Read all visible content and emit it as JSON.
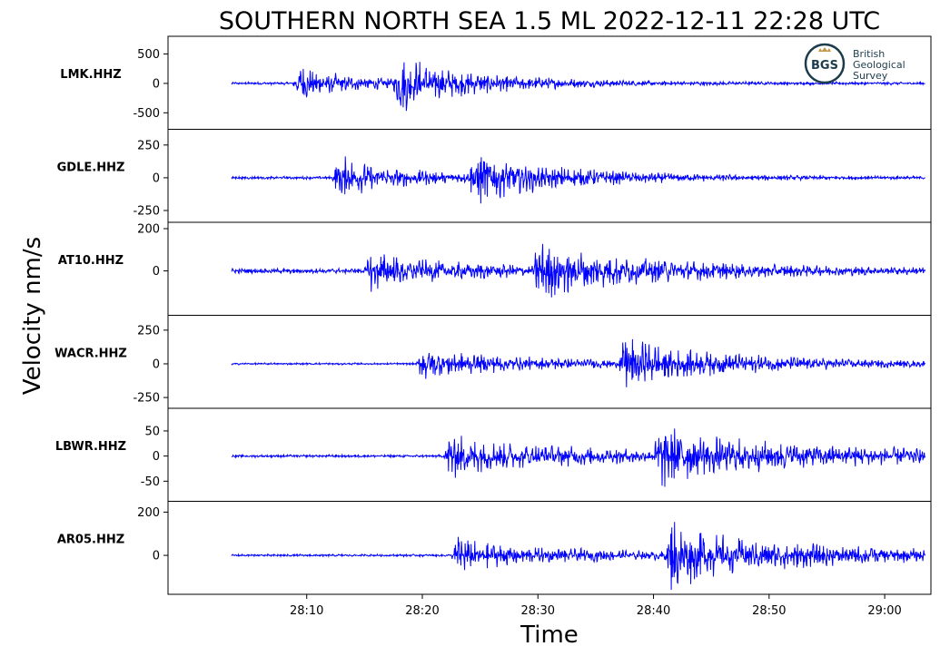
{
  "chart_data": {
    "type": "line",
    "title": "SOUTHERN NORTH SEA 1.5 ML   2022-12-11 22:28 UTC",
    "xlabel": "Time",
    "ylabel": "Velocity nm/s",
    "line_color": "#0000ff",
    "x_ticks": [
      "28:10",
      "28:20",
      "28:30",
      "28:40",
      "28:50",
      "29:00"
    ],
    "x_tick_seconds": [
      10,
      20,
      30,
      40,
      50,
      60
    ],
    "xlim_seconds": [
      -2,
      64
    ],
    "data_range_seconds": [
      3.5,
      63.5
    ],
    "panels": [
      {
        "station": "LMK.HHZ",
        "ylim": [
          -780,
          800
        ],
        "yticks": [
          500,
          0,
          -500
        ],
        "ytick_labels": [
          "500",
          "0",
          "-500"
        ],
        "noise": 25,
        "phases": [
          {
            "t": 8.8,
            "amp": 400
          },
          {
            "t": 17.5,
            "amp": 620
          }
        ],
        "decay": 0.09
      },
      {
        "station": "GDLE.HHZ",
        "ylim": [
          -340,
          370
        ],
        "yticks": [
          250,
          0,
          -250
        ],
        "ytick_labels": [
          "250",
          "0",
          "-250"
        ],
        "noise": 12,
        "phases": [
          {
            "t": 12.2,
            "amp": 220
          },
          {
            "t": 24,
            "amp": 280
          }
        ],
        "decay": 0.08
      },
      {
        "station": "AT10.HHZ",
        "ylim": [
          -210,
          230
        ],
        "yticks": [
          200,
          0
        ],
        "ytick_labels": [
          "200",
          "0"
        ],
        "noise": 13,
        "phases": [
          {
            "t": 15,
            "amp": 120
          },
          {
            "t": 29.5,
            "amp": 180
          }
        ],
        "decay": 0.06
      },
      {
        "station": "WACR.HHZ",
        "ylim": [
          -330,
          360
        ],
        "yticks": [
          250,
          0,
          -250
        ],
        "ytick_labels": [
          "250",
          "0",
          "-250"
        ],
        "noise": 8,
        "phases": [
          {
            "t": 19.5,
            "amp": 190
          },
          {
            "t": 37,
            "amp": 260
          }
        ],
        "decay": 0.06
      },
      {
        "station": "LBWR.HHZ",
        "ylim": [
          -90,
          95
        ],
        "yticks": [
          50,
          0,
          -50
        ],
        "ytick_labels": [
          "50",
          "0",
          "-50"
        ],
        "noise": 3,
        "phases": [
          {
            "t": 21.8,
            "amp": 60
          },
          {
            "t": 40,
            "amp": 70
          }
        ],
        "decay": 0.04
      },
      {
        "station": "AR05.HHZ",
        "ylim": [
          -180,
          250
        ],
        "yticks": [
          200,
          0
        ],
        "ytick_labels": [
          "200",
          "0"
        ],
        "noise": 6,
        "phases": [
          {
            "t": 22.5,
            "amp": 110
          },
          {
            "t": 41,
            "amp": 200
          }
        ],
        "decay": 0.05
      }
    ]
  },
  "logo": {
    "initials": "BGS",
    "lines": [
      "British",
      "Geological",
      "Survey"
    ],
    "ring_color": "#1d3c4b",
    "accent_color": "#c59b4a"
  }
}
